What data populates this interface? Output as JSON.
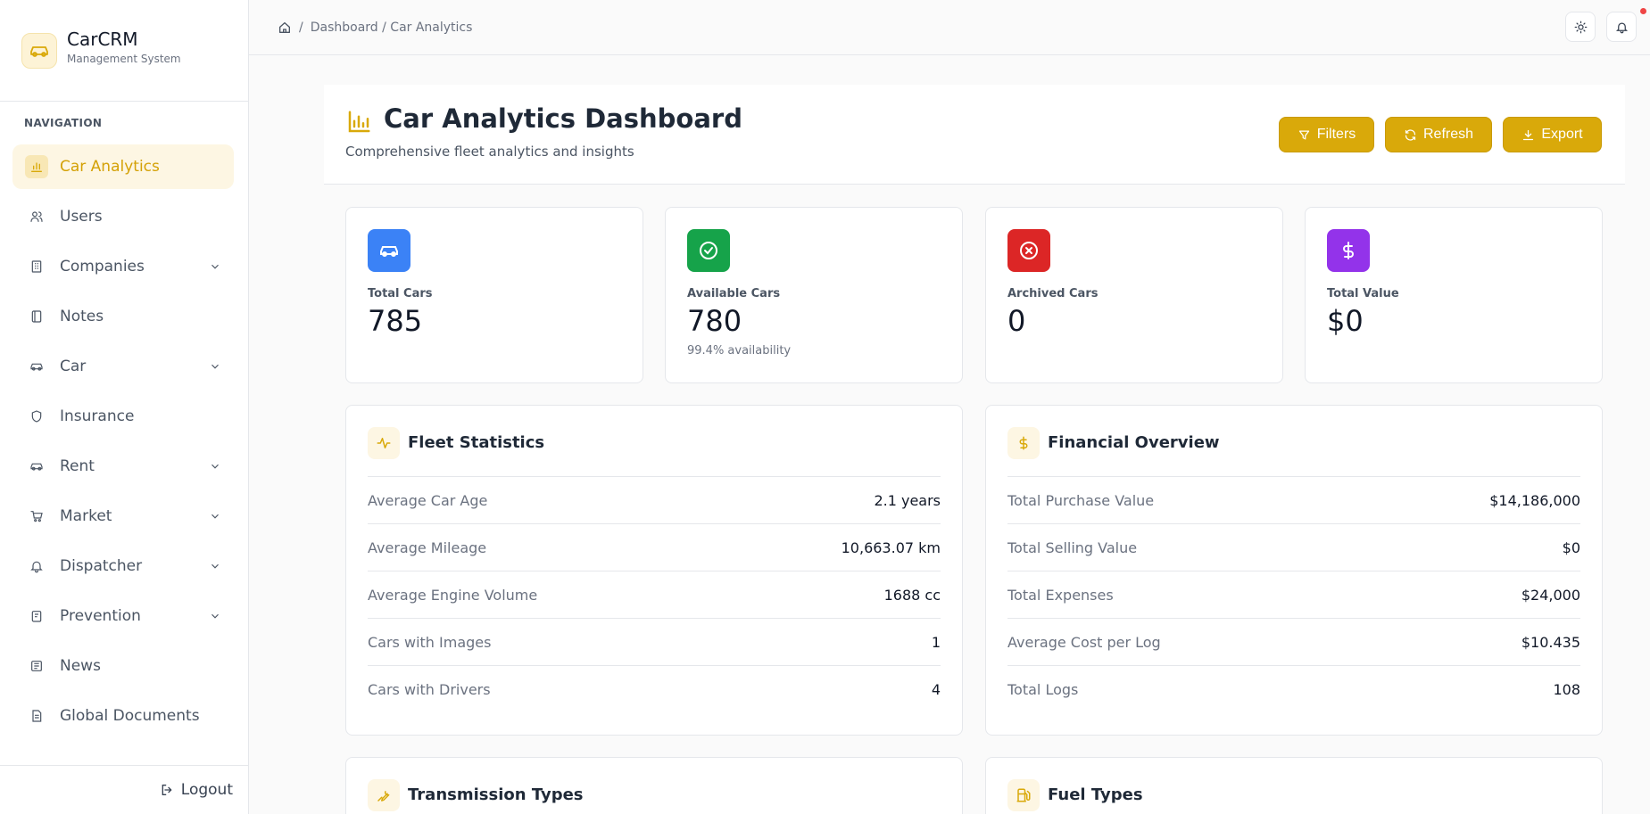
{
  "brand": {
    "name": "CarCRM",
    "subtitle": "Management System"
  },
  "nav": {
    "heading": "NAVIGATION",
    "items": [
      {
        "label": "Car Analytics",
        "icon": "bar-chart-icon",
        "active": true
      },
      {
        "label": "Users",
        "icon": "users-icon"
      },
      {
        "label": "Companies",
        "icon": "building-icon",
        "expandable": true
      },
      {
        "label": "Notes",
        "icon": "notebook-icon"
      },
      {
        "label": "Car",
        "icon": "car-icon",
        "expandable": true
      },
      {
        "label": "Insurance",
        "icon": "shield-icon"
      },
      {
        "label": "Rent",
        "icon": "car-icon",
        "expandable": true
      },
      {
        "label": "Market",
        "icon": "cart-icon",
        "expandable": true
      },
      {
        "label": "Dispatcher",
        "icon": "bell-icon",
        "expandable": true
      },
      {
        "label": "Prevention",
        "icon": "clipboard-icon",
        "expandable": true
      },
      {
        "label": "News",
        "icon": "newspaper-icon"
      },
      {
        "label": "Global Documents",
        "icon": "document-icon"
      }
    ],
    "logout": "Logout"
  },
  "breadcrumb": {
    "sep": "/",
    "path": "Dashboard / Car Analytics"
  },
  "header": {
    "title": "Car Analytics Dashboard",
    "subtitle": "Comprehensive fleet analytics and insights",
    "buttons": {
      "filters": "Filters",
      "refresh": "Refresh",
      "export": "Export"
    }
  },
  "stats": [
    {
      "label": "Total Cars",
      "value": "785",
      "note": "",
      "color": "#3b82f6"
    },
    {
      "label": "Available Cars",
      "value": "780",
      "note": "99.4% availability",
      "color": "#16a34a"
    },
    {
      "label": "Archived Cars",
      "value": "0",
      "note": "",
      "color": "#dc2626"
    },
    {
      "label": "Total Value",
      "value": "$0",
      "note": "",
      "color": "#9333ea"
    }
  ],
  "fleet": {
    "title": "Fleet Statistics",
    "rows": [
      {
        "label": "Average Car Age",
        "value": "2.1 years"
      },
      {
        "label": "Average Mileage",
        "value": "10,663.07 km"
      },
      {
        "label": "Average Engine Volume",
        "value": "1688 cc"
      },
      {
        "label": "Cars with Images",
        "value": "1"
      },
      {
        "label": "Cars with Drivers",
        "value": "4"
      }
    ]
  },
  "financial": {
    "title": "Financial Overview",
    "rows": [
      {
        "label": "Total Purchase Value",
        "value": "$14,186,000"
      },
      {
        "label": "Total Selling Value",
        "value": "$0"
      },
      {
        "label": "Total Expenses",
        "value": "$24,000"
      },
      {
        "label": "Average Cost per Log",
        "value": "$10.435"
      },
      {
        "label": "Total Logs",
        "value": "108"
      }
    ]
  },
  "transmission": {
    "title": "Transmission Types"
  },
  "fuel": {
    "title": "Fuel Types"
  },
  "accent": "#d9a90a"
}
